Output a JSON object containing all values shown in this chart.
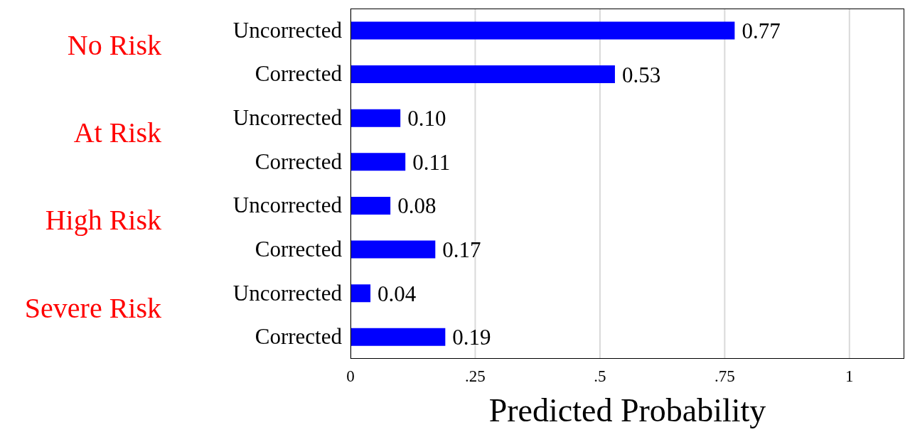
{
  "chart_data": {
    "type": "bar",
    "orientation": "horizontal",
    "xlabel": "Predicted Probability",
    "categories": [
      "Uncorrected",
      "Corrected",
      "Uncorrected",
      "Corrected",
      "Uncorrected",
      "Corrected",
      "Uncorrected",
      "Corrected"
    ],
    "values": [
      0.77,
      0.53,
      0.1,
      0.11,
      0.08,
      0.17,
      0.04,
      0.19
    ],
    "value_labels": [
      "0.77",
      "0.53",
      "0.10",
      "0.11",
      "0.08",
      "0.17",
      "0.04",
      "0.19"
    ],
    "color": "#0000ff",
    "annotations": [
      "No Risk",
      "At Risk",
      "High Risk",
      "Severe Risk"
    ],
    "xlim": [
      0,
      1.11
    ],
    "xticks": [
      0,
      {
        "value": 0.25,
        "label": ".25"
      },
      {
        "value": 0.5,
        "label": ".5"
      },
      {
        "value": 0.75,
        "label": ".75"
      },
      1
    ],
    "grid": "x"
  }
}
